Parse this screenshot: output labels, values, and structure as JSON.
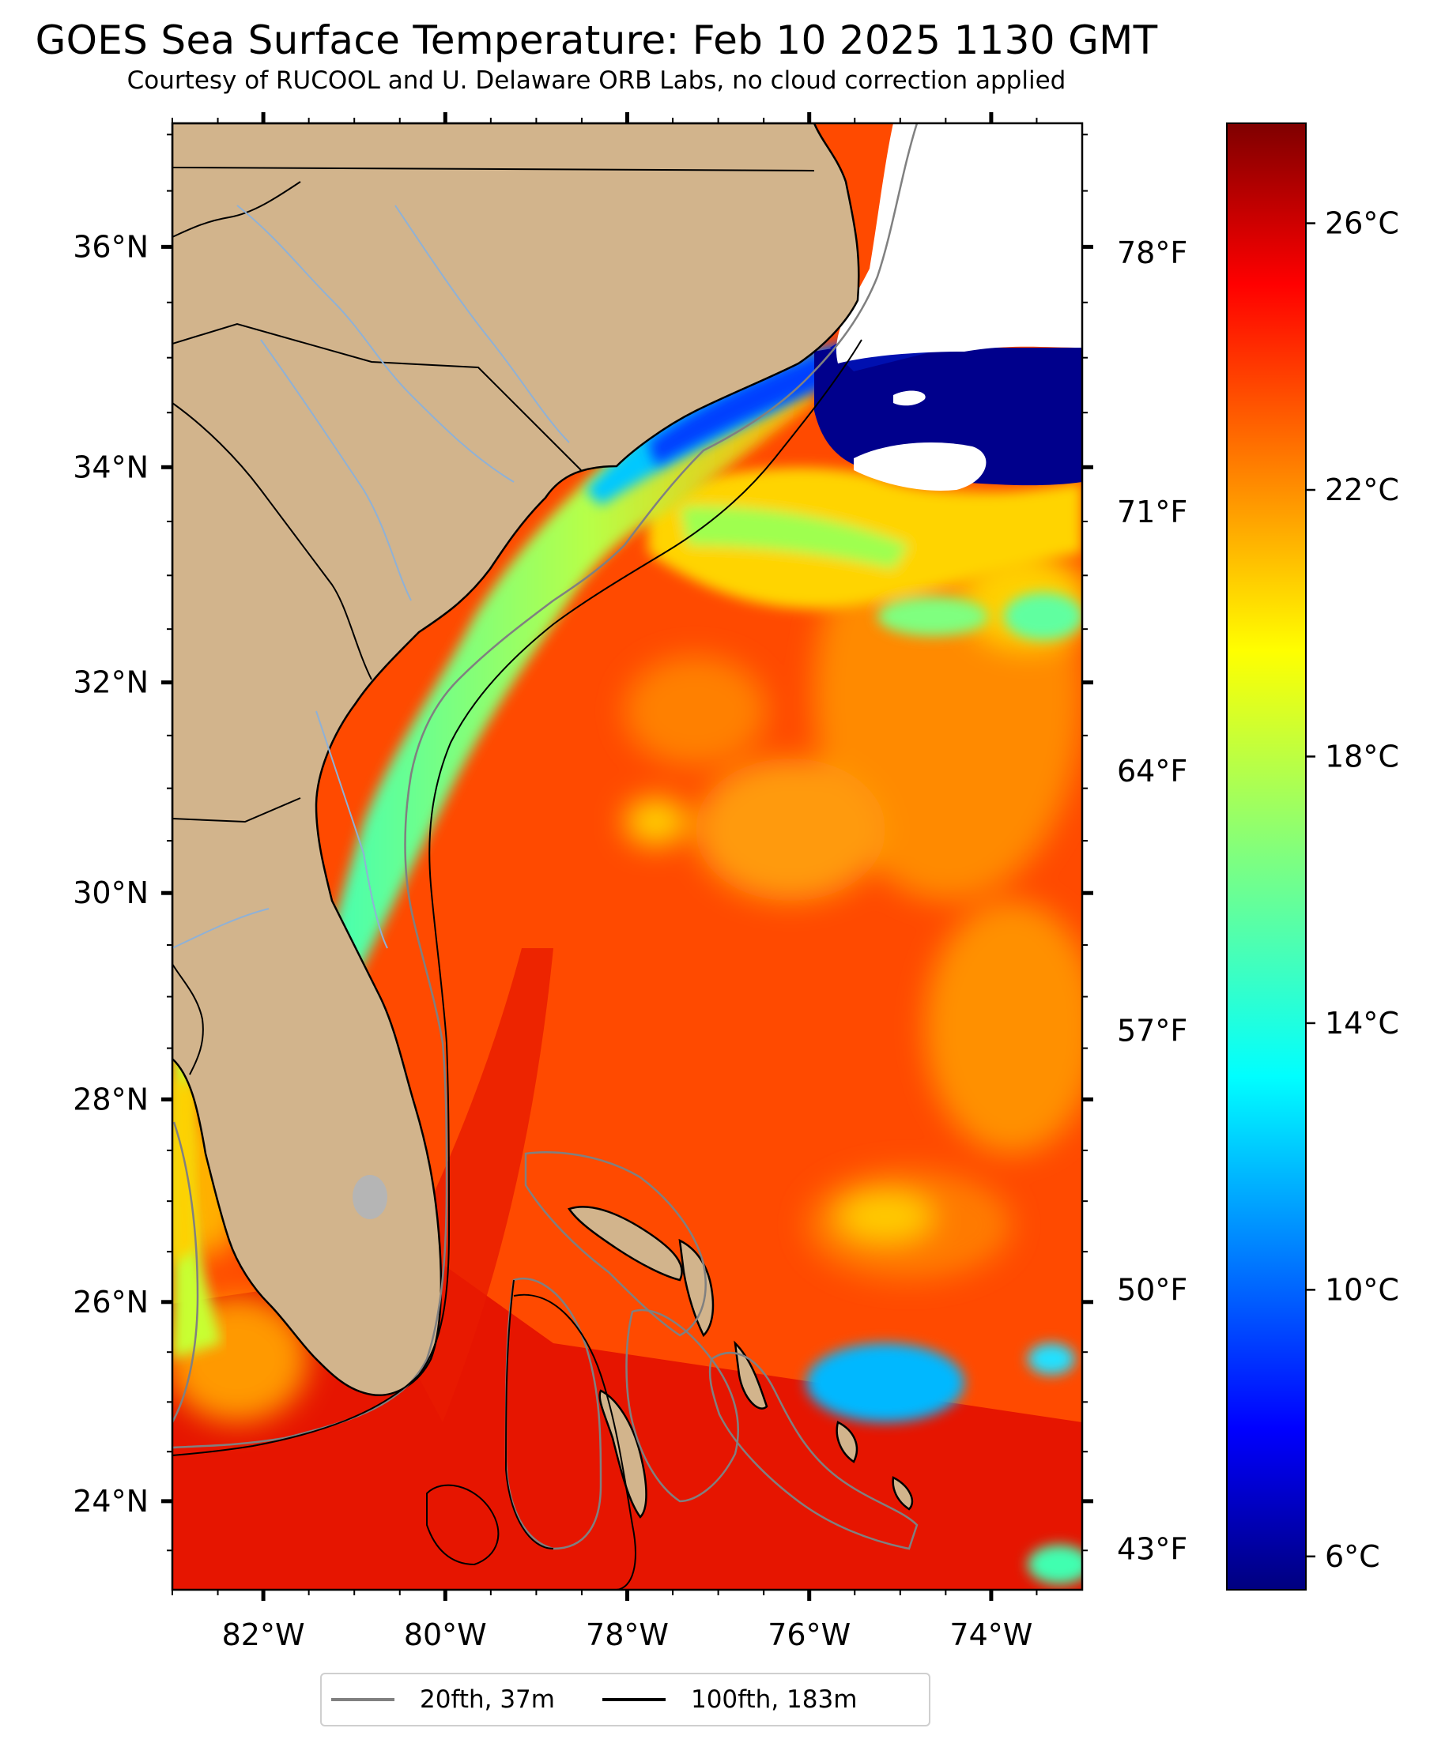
{
  "title": "GOES Sea Surface Temperature: Feb 10 2025 1130 GMT",
  "subtitle": "Courtesy of RUCOOL and U. Delaware ORB Labs, no cloud correction applied",
  "map": {
    "lon_range": [
      -83,
      -73
    ],
    "lat_range": [
      23.1,
      37.1
    ],
    "land_color": "#d2b48c",
    "lat_labels": [
      "36°N",
      "34°N",
      "32°N",
      "30°N",
      "28°N",
      "26°N",
      "24°N"
    ],
    "lat_values": [
      36,
      34,
      32,
      30,
      28,
      26,
      24
    ],
    "lon_labels": [
      "82°W",
      "80°W",
      "78°W",
      "76°W",
      "74°W"
    ],
    "lon_values": [
      -82,
      -80,
      -78,
      -76,
      -74
    ],
    "fahrenheit_labels": [
      "78°F",
      "71°F",
      "64°F",
      "57°F",
      "50°F",
      "43°F"
    ],
    "fahrenheit_values": [
      78,
      71,
      64,
      57,
      50,
      43
    ]
  },
  "colorbar": {
    "colormap": "jet",
    "range_c": [
      5.5,
      27.5
    ],
    "labels": [
      "26°C",
      "22°C",
      "18°C",
      "14°C",
      "10°C",
      "6°C"
    ],
    "values": [
      26,
      22,
      18,
      14,
      10,
      6
    ]
  },
  "legend": {
    "items": [
      {
        "label": "20fth, 37m",
        "color": "#808080"
      },
      {
        "label": "100fth, 183m",
        "color": "#000000"
      }
    ]
  }
}
